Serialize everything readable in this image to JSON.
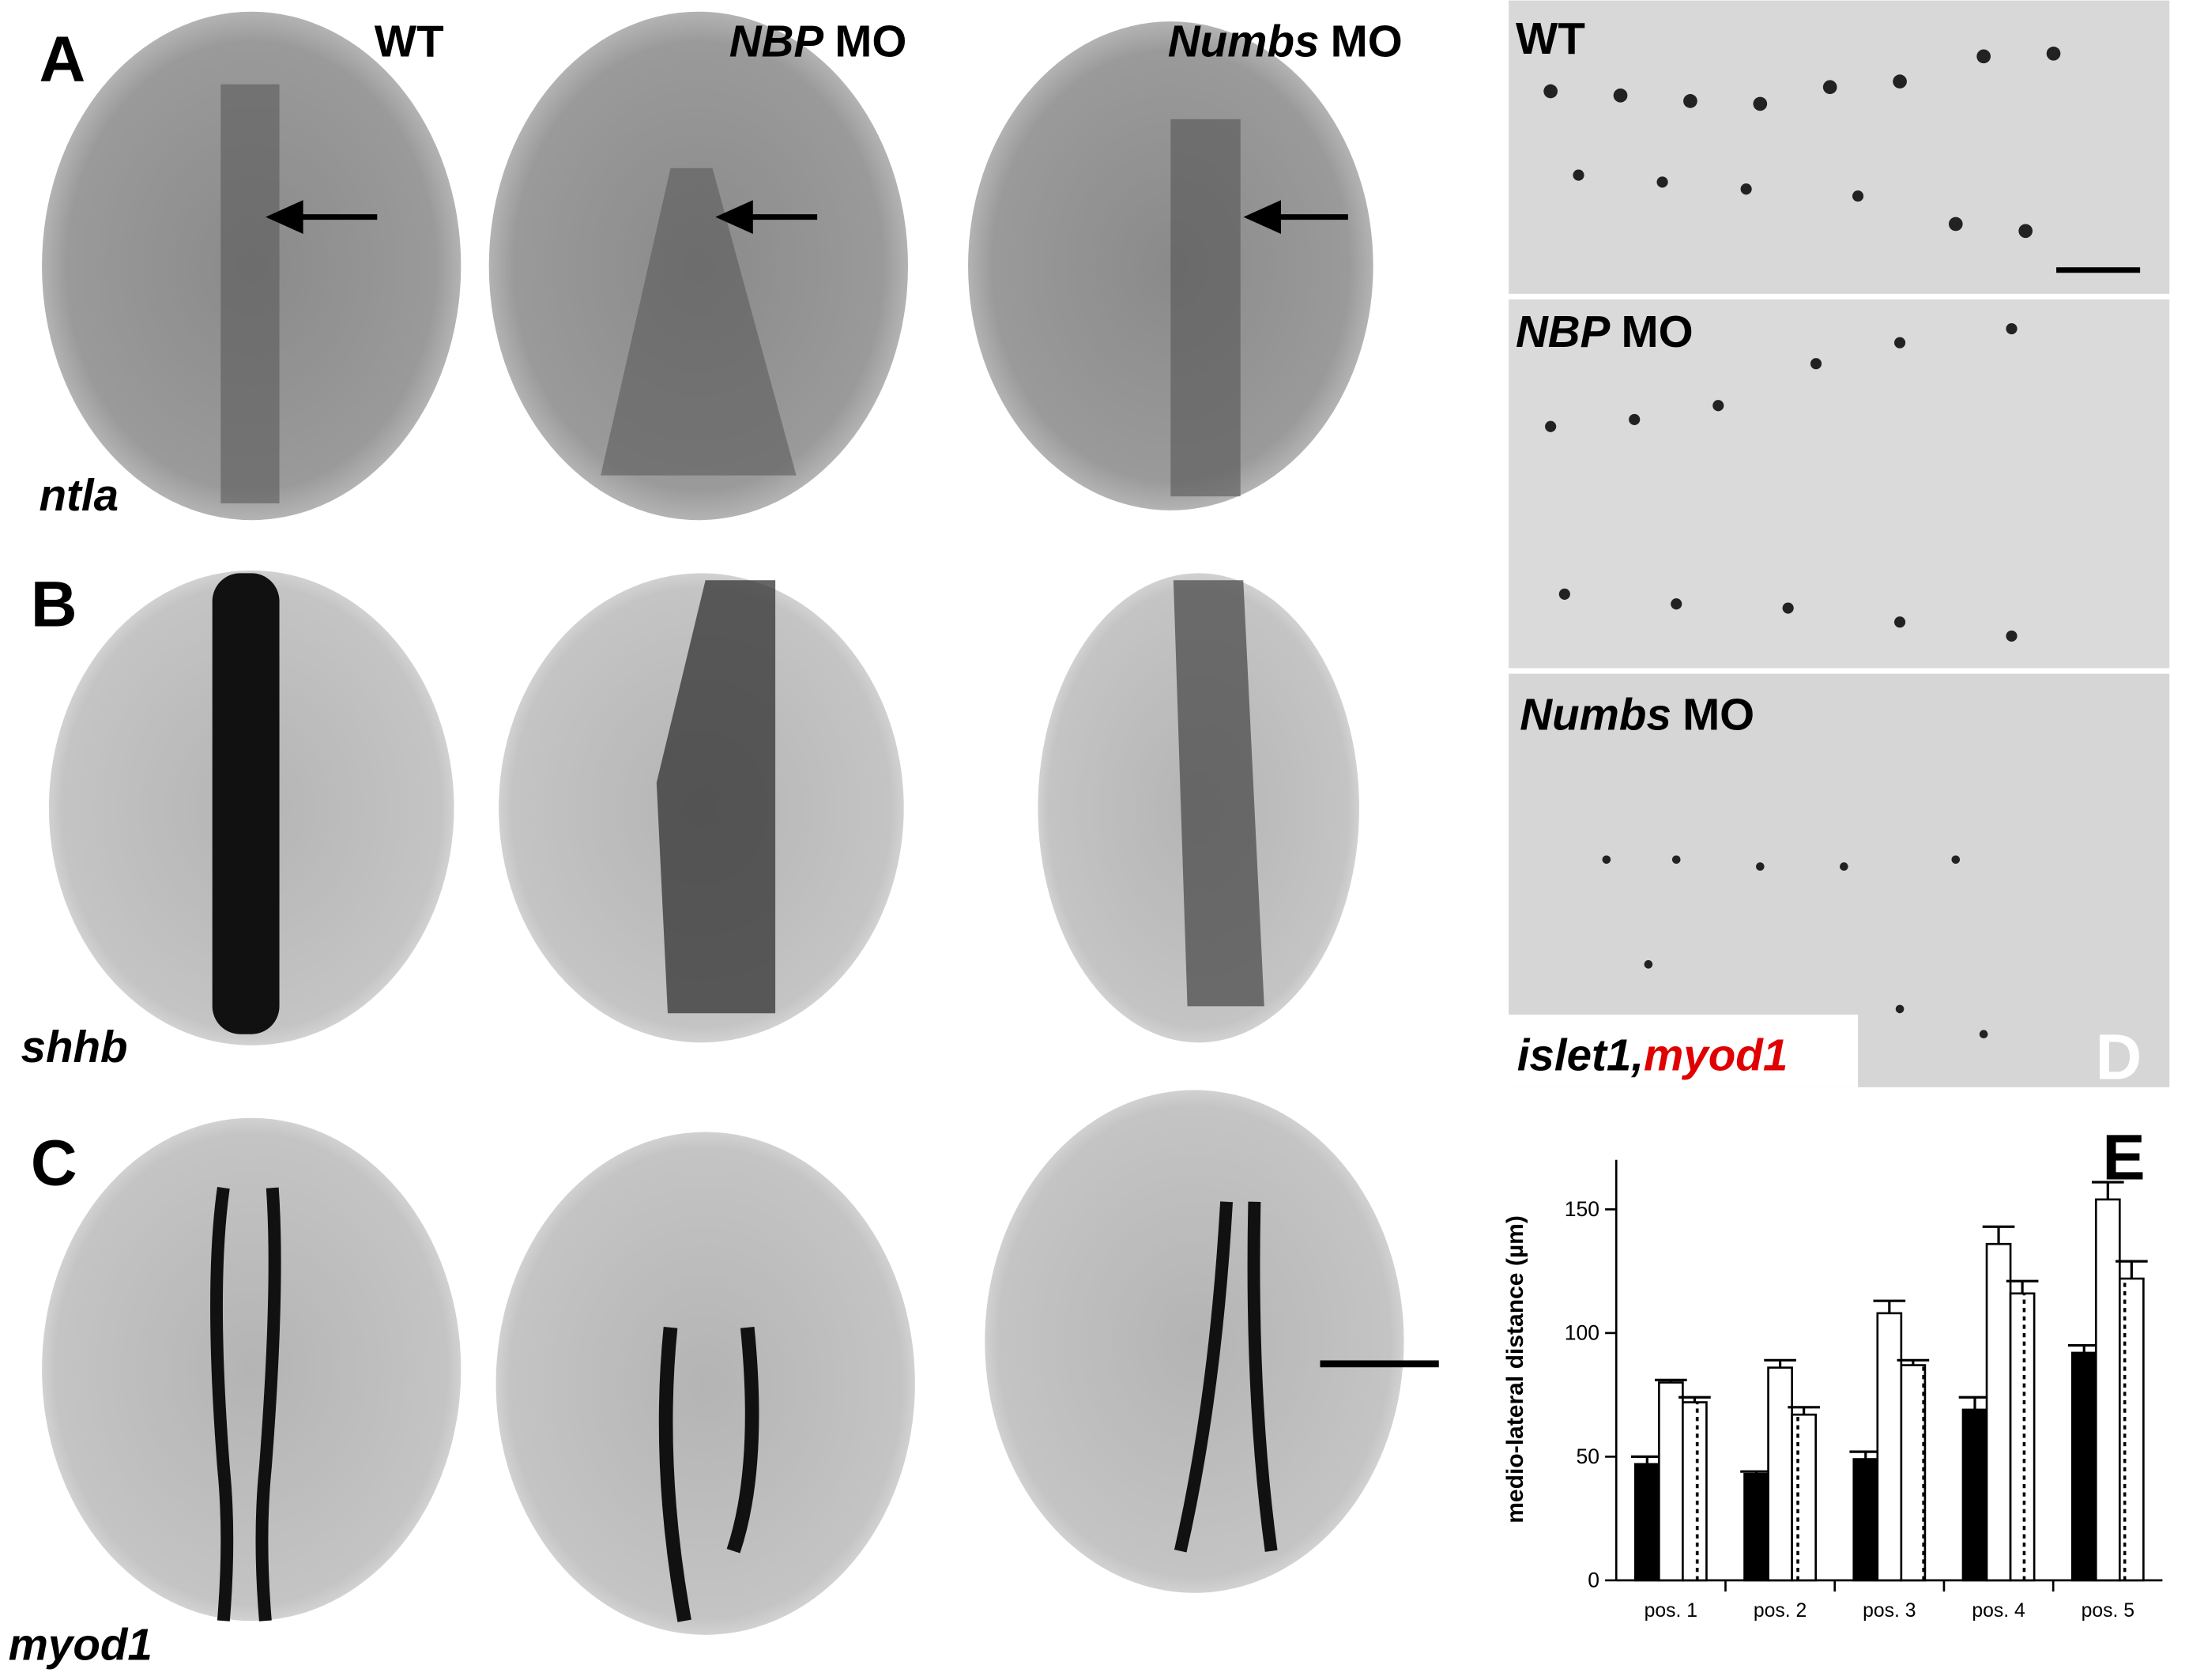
{
  "figure": {
    "panels": [
      "A",
      "B",
      "C",
      "D",
      "E"
    ],
    "columns": [
      {
        "label": "WT"
      },
      {
        "gene": "NBP",
        "label": "MO"
      },
      {
        "gene": "Numbs",
        "label": "MO"
      }
    ],
    "rows": [
      "ntla",
      "shhb",
      "myod1"
    ],
    "d_panels": [
      {
        "label": "WT"
      },
      {
        "gene": "NBP",
        "label": "MO"
      },
      {
        "gene": "Numbs",
        "label": "MO"
      }
    ],
    "d_markers": [
      "islet1,",
      "myod1"
    ]
  },
  "chart_data": {
    "type": "bar",
    "ylabel": "medio-lateral distance (µm)",
    "categories": [
      "pos. 1",
      "pos. 2",
      "pos. 3",
      "pos. 4",
      "pos. 5"
    ],
    "series": [
      {
        "color": "#000000",
        "values": [
          47,
          43,
          49,
          69,
          92
        ],
        "errors": [
          3,
          1,
          3,
          5,
          3
        ]
      },
      {
        "color": "#ffffff",
        "values": [
          80,
          86,
          108,
          136,
          154
        ],
        "errors": [
          1,
          3,
          5,
          7,
          7
        ]
      },
      {
        "color": "#ffffff",
        "pattern": "dots",
        "values": [
          72,
          67,
          87,
          116,
          122
        ],
        "errors": [
          2,
          3,
          2,
          5,
          7
        ]
      }
    ],
    "ylim": [
      0,
      170
    ],
    "yticks": [
      0,
      50,
      100,
      150
    ]
  }
}
